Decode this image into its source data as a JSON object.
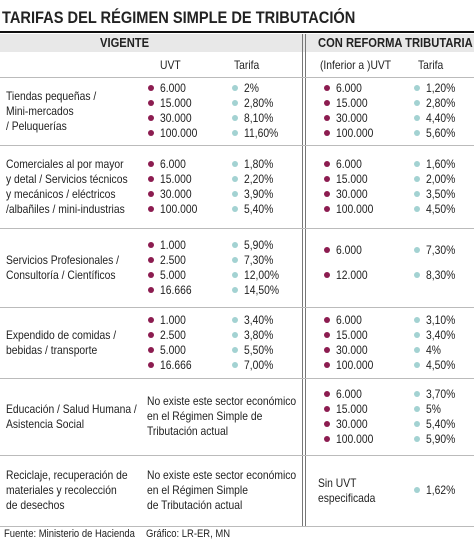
{
  "title": "TARIFAS DEL RÉGIMEN SIMPLE DE TRIBUTACIÓN",
  "groups": [
    "VIGENTE",
    "CON REFORMA TRIBUTARIA"
  ],
  "subheaders": [
    "UVT",
    "Tarifa",
    "(Inferior a )UVT",
    "Tarifa"
  ],
  "rows": [
    {
      "sector": [
        "Tiendas pequeñas /",
        "Mini-mercados",
        "/ Peluquerías"
      ],
      "vigente": {
        "uvt": [
          "6.000",
          "15.000",
          "30.000",
          "100.000"
        ],
        "tarifa": [
          "2%",
          "2,80%",
          "8,10%",
          "11,60%"
        ]
      },
      "reforma": {
        "uvt": [
          "6.000",
          "15.000",
          "30.000",
          "100.000"
        ],
        "tarifa": [
          "1,20%",
          "2,80%",
          "4,40%",
          "5,60%"
        ]
      }
    },
    {
      "sector": [
        "Comerciales al por mayor",
        "y detal / Servicios técnicos",
        "y mecánicos / eléctricos",
        "/albañiles / mini-industrias"
      ],
      "vigente": {
        "uvt": [
          "6.000",
          "15.000",
          "30.000",
          "100.000"
        ],
        "tarifa": [
          "1,80%",
          "2,20%",
          "3,90%",
          "5,40%"
        ]
      },
      "reforma": {
        "uvt": [
          "6.000",
          "15.000",
          "30.000",
          "100.000"
        ],
        "tarifa": [
          "1,60%",
          "2,00%",
          "3,50%",
          "4,50%"
        ]
      }
    },
    {
      "sector": [
        "Servicios Profesionales /",
        "Consultoría / Científicos"
      ],
      "vigente": {
        "uvt": [
          "1.000",
          "2.500",
          "5.000",
          "16.666"
        ],
        "tarifa": [
          "5,90%",
          "7,30%",
          "12,00%",
          "14,50%"
        ]
      },
      "reforma": {
        "uvt": [
          "6.000",
          "12.000"
        ],
        "tarifa": [
          "7,30%",
          "8,30%"
        ]
      }
    },
    {
      "sector": [
        "Expendido de comidas /",
        "bebidas / transporte"
      ],
      "vigente": {
        "uvt": [
          "1.000",
          "2.500",
          "5.000",
          "16.666"
        ],
        "tarifa": [
          "3,40%",
          "3,80%",
          "5,50%",
          "7,00%"
        ]
      },
      "reforma": {
        "uvt": [
          "6.000",
          "15.000",
          "30.000",
          "100.000"
        ],
        "tarifa": [
          "3,10%",
          "3,40%",
          "4%",
          "4,50%"
        ]
      }
    },
    {
      "sector": [
        "Educación / Salud Humana /",
        "Asistencia Social"
      ],
      "vigente": {
        "note": [
          "No existe este sector económico",
          "en el Régimen Simple de",
          "Tributación actual"
        ]
      },
      "reforma": {
        "uvt": [
          "6.000",
          "15.000",
          "30.000",
          "100.000"
        ],
        "tarifa": [
          "3,70%",
          "5%",
          "5,40%",
          "5,90%"
        ]
      }
    },
    {
      "sector": [
        "Reciclaje, recuperación de",
        "materiales y recolección",
        "de desechos"
      ],
      "vigente": {
        "note": [
          "No existe este sector económico",
          "en el Régimen Simple",
          "de Tributación actual"
        ]
      },
      "reforma": {
        "uvt_note": [
          "Sin UVT",
          "especificada"
        ],
        "tarifa": [
          "1,62%"
        ]
      }
    }
  ],
  "footer": [
    "Fuente: Ministerio de Hacienda",
    "Gráfico: LR-ER, MN"
  ]
}
